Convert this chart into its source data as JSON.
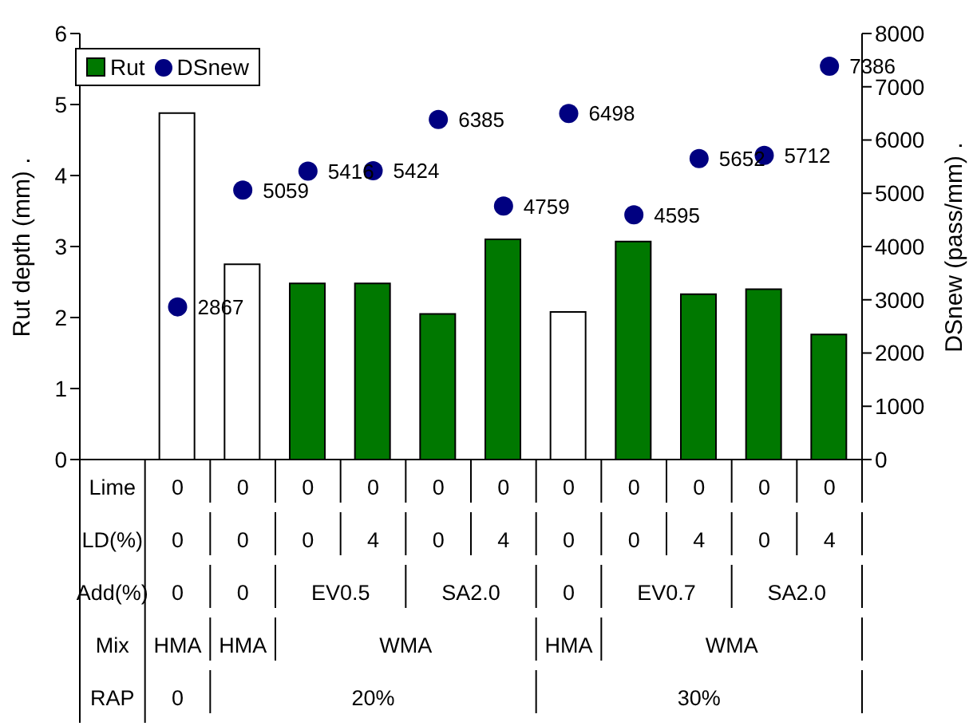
{
  "chart_data": {
    "type": "bar",
    "categories": [
      null,
      null,
      null,
      null,
      null,
      null,
      null,
      null,
      null,
      null,
      null,
      null
    ],
    "ylabel": "Rut depth (mm) .",
    "y2label": "DSnew (pass/mm) .",
    "ylim": [
      0,
      6
    ],
    "yticks": [
      0,
      1,
      2,
      3,
      4,
      5,
      6
    ],
    "y2lim": [
      0,
      8000
    ],
    "y2ticks": [
      0,
      1000,
      2000,
      3000,
      4000,
      5000,
      6000,
      7000,
      8000
    ],
    "legend": "top left",
    "grid": false,
    "series": [
      {
        "name": "Rut",
        "color": "#007800",
        "colors": [
          null,
          "#ffffff",
          "#ffffff",
          "#007800",
          "#007800",
          "#007800",
          "#007800",
          "#ffffff",
          "#007800",
          "#007800",
          "#007800",
          "#007800"
        ],
        "values": [
          null,
          4.88,
          2.75,
          2.48,
          2.48,
          2.05,
          3.1,
          2.08,
          3.07,
          2.33,
          2.4,
          1.76
        ]
      },
      {
        "name": "DSnew",
        "type": "scatter",
        "axis": "y2",
        "marker": "circle",
        "color": "#000080",
        "values": [
          null,
          2867,
          5059,
          5416,
          5424,
          6385,
          4759,
          6498,
          4595,
          5652,
          5712,
          7386
        ],
        "value_labels": [
          null,
          "2867",
          "5059",
          "5416",
          "5424",
          "6385",
          "4759",
          "6498",
          "4595",
          "5652",
          "5712",
          "7386"
        ]
      }
    ],
    "annotations": [
      "Lime",
      "LD(%)",
      "Add(%)",
      "Mix",
      "RAP",
      "0",
      "0",
      "0",
      "0",
      "0",
      "0",
      "0",
      "0",
      "0",
      "0",
      "0",
      "0",
      "0",
      "0",
      "4",
      "0",
      "4",
      "0",
      "0",
      "4",
      "0",
      "4",
      "0",
      "0",
      "EV0.5",
      "SA2.0",
      "0",
      "EV0.7",
      "SA2.0",
      "HMA",
      "HMA",
      "WMA",
      "HMA",
      "WMA",
      "0",
      "20%",
      "30%"
    ]
  }
}
